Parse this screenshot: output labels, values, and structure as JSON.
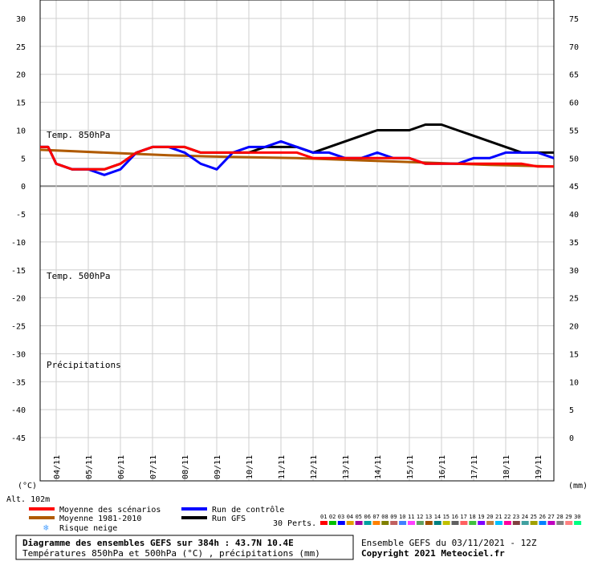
{
  "chart_data": {
    "type": "line",
    "title": "Diagramme des ensembles GEFS sur 384h : 43.7N 10.4E",
    "subtitle": "Températures 850hPa et 500hPa (°C) , précipitations (mm)",
    "run_info": "Ensemble GEFS du 03/11/2021 - 12Z",
    "copyright": "Copyright 2021 Meteociel.fr",
    "altitude": "Alt. 102m",
    "left_unit": "(°C)",
    "right_unit": "(mm)",
    "left_axis": {
      "range": [
        -45,
        30
      ],
      "ticks": [
        "30",
        "25",
        "20",
        "15",
        "10",
        "5",
        "0",
        "-5",
        "-10",
        "-15",
        "-20",
        "-25",
        "-30",
        "-35",
        "-40",
        "-45"
      ]
    },
    "right_axis": {
      "range": [
        0,
        75
      ],
      "ticks": [
        "75",
        "70",
        "65",
        "60",
        "55",
        "50",
        "45",
        "40",
        "35",
        "30",
        "25",
        "20",
        "15",
        "10",
        "5",
        "0"
      ]
    },
    "x_ticks": [
      "04/11",
      "05/11",
      "06/11",
      "07/11",
      "08/11",
      "09/11",
      "10/11",
      "11/11",
      "12/11",
      "13/11",
      "14/11",
      "15/11",
      "16/11",
      "17/11",
      "18/11",
      "19/11"
    ],
    "x_range_hours": [
      0,
      384
    ],
    "panel_labels": {
      "t850": "Temp. 850hPa",
      "t500": "Temp. 500hPa",
      "precip": "Précipitations"
    },
    "legend": {
      "mean": "Moyenne des scénarios",
      "climo": "Moyenne 1981-2010",
      "control": "Run de contrôle",
      "gfs": "Run GFS",
      "snow": "Risque neige",
      "perts_label": "30 Perts.",
      "members": [
        "01",
        "02",
        "03",
        "04",
        "05",
        "06",
        "07",
        "08",
        "09",
        "10",
        "11",
        "12",
        "13",
        "14",
        "15",
        "16",
        "17",
        "18",
        "19",
        "20",
        "21",
        "22",
        "23",
        "24",
        "25",
        "26",
        "27",
        "28",
        "29",
        "30"
      ]
    },
    "colors": {
      "mean": "#ff0000",
      "climo": "#b05a00",
      "control": "#0000ff",
      "gfs": "#000000",
      "members": [
        "#ff0000",
        "#00c000",
        "#0000ff",
        "#e0a000",
        "#a000a0",
        "#00a0a0",
        "#ff8000",
        "#808000",
        "#c06060",
        "#4080ff",
        "#ff40ff",
        "#60a060",
        "#a05000",
        "#008080",
        "#c0c000",
        "#606060",
        "#ff6060",
        "#40c040",
        "#8000ff",
        "#c08040",
        "#00c0ff",
        "#ff00a0",
        "#804040",
        "#40a0a0",
        "#a0a000",
        "#0080ff",
        "#c000c0",
        "#808080",
        "#ff8080",
        "#00ff80"
      ]
    },
    "series": [
      {
        "name": "Run GFS",
        "x": [
          0,
          6,
          12,
          24,
          36,
          48,
          60,
          72,
          84,
          96,
          108,
          120,
          132,
          144,
          156,
          168,
          180,
          192,
          204,
          216,
          228,
          240,
          252,
          264,
          276,
          288,
          300,
          312,
          324,
          336,
          348,
          360,
          372,
          384
        ],
        "y": [
          7,
          7,
          4,
          3,
          3,
          3,
          4,
          6,
          7,
          7,
          7,
          6,
          6,
          6,
          6,
          7,
          7,
          7,
          6,
          7,
          8,
          9,
          10,
          10,
          10,
          11,
          11,
          10,
          9,
          8,
          7,
          6,
          6,
          6
        ]
      },
      {
        "name": "Run de contrôle",
        "x": [
          0,
          6,
          12,
          24,
          36,
          48,
          60,
          72,
          84,
          96,
          108,
          120,
          132,
          144,
          156,
          168,
          180,
          192,
          204,
          216,
          228,
          240,
          252,
          264,
          276,
          288,
          300,
          312,
          324,
          336,
          348,
          360,
          372,
          384
        ],
        "y": [
          7,
          7,
          4,
          3,
          3,
          2,
          3,
          6,
          7,
          7,
          6,
          4,
          3,
          6,
          7,
          7,
          8,
          7,
          6,
          6,
          5,
          5,
          6,
          5,
          5,
          4,
          4,
          4,
          5,
          5,
          6,
          6,
          6,
          5
        ]
      },
      {
        "name": "Moyenne des scénarios",
        "x": [
          0,
          6,
          12,
          24,
          36,
          48,
          60,
          72,
          84,
          96,
          108,
          120,
          132,
          144,
          156,
          168,
          180,
          192,
          204,
          216,
          228,
          240,
          252,
          264,
          276,
          288,
          300,
          312,
          324,
          336,
          348,
          360,
          372,
          384
        ],
        "y": [
          7,
          7,
          4,
          3,
          3,
          3,
          4,
          6,
          7,
          7,
          7,
          6,
          6,
          6,
          6,
          6,
          6,
          6,
          5,
          5,
          5,
          5,
          5,
          5,
          5,
          4,
          4,
          4,
          4,
          4,
          4,
          4,
          3.5,
          3.5
        ]
      },
      {
        "name": "Moyenne 1981-2010",
        "x": [
          0,
          48,
          96,
          144,
          192,
          240,
          288,
          336,
          384
        ],
        "y": [
          6.5,
          6,
          5.5,
          5.2,
          5,
          4.6,
          4.2,
          3.8,
          3.5
        ]
      }
    ]
  }
}
